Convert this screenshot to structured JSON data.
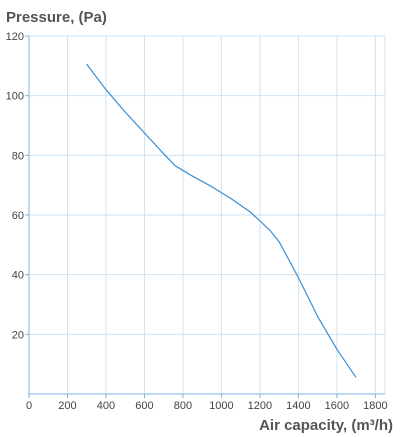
{
  "chart_data": {
    "type": "line",
    "ylabel": "Pressure, (Pa)",
    "xlabel": "Air capacity, (m³/h)",
    "xlim": [
      0,
      1850
    ],
    "ylim": [
      0,
      120
    ],
    "x_ticks": [
      0,
      200,
      400,
      600,
      800,
      1000,
      1200,
      1400,
      1600,
      1800
    ],
    "y_ticks": [
      20,
      40,
      60,
      80,
      100,
      120
    ],
    "grid": true,
    "colors": {
      "line": "#3a8fd6",
      "grid": "#cfe3f3",
      "axis": "#7fb6e0",
      "text": "#555555"
    },
    "series": [
      {
        "x": [
          300,
          400,
          500,
          600,
          700,
          760,
          850,
          950,
          1050,
          1150,
          1250,
          1300,
          1400,
          1500,
          1600,
          1700
        ],
        "y": [
          110.5,
          102,
          94.5,
          87.5,
          80.5,
          76.5,
          73,
          69.5,
          65.5,
          61,
          55,
          51,
          39,
          26,
          15,
          5.5
        ]
      }
    ]
  }
}
